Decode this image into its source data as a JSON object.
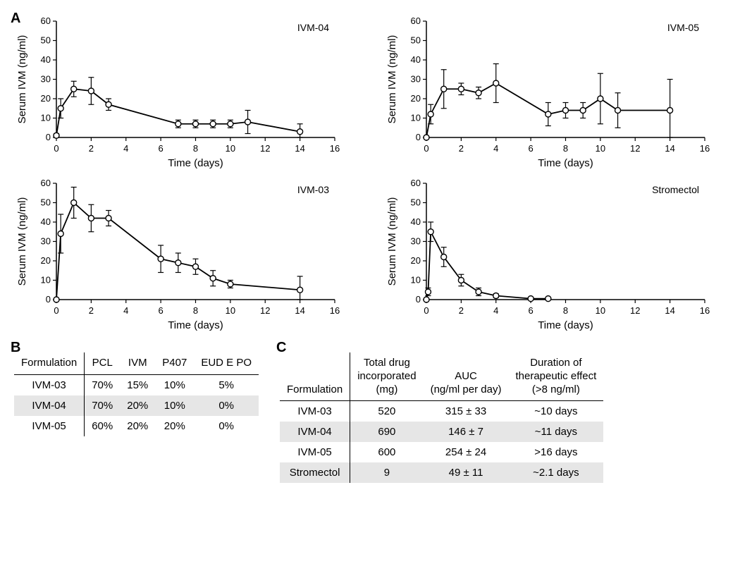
{
  "panelA": {
    "label": "A",
    "ylabel": "Serum IVM (ng/ml)",
    "xlabel": "Time (days)",
    "ylim": [
      0,
      60
    ],
    "ytick_step": 10,
    "xlim": [
      0,
      16
    ],
    "xtick_step": 2,
    "marker": {
      "shape": "circle",
      "size": 4,
      "fill": "#ffffff",
      "stroke": "#000000"
    },
    "line_color": "#000000",
    "line_width": 1.8,
    "error_cap": 4,
    "background_color": "#ffffff",
    "axis_color": "#000000",
    "font_size_axis": 13,
    "font_size_label_chart": 15,
    "charts": [
      {
        "title": "IVM-04",
        "points": [
          {
            "x": 0,
            "y": 1,
            "err": 1
          },
          {
            "x": 0.25,
            "y": 15,
            "err": 5
          },
          {
            "x": 1,
            "y": 25,
            "err": 4
          },
          {
            "x": 2,
            "y": 24,
            "err": 7
          },
          {
            "x": 3,
            "y": 17,
            "err": 3
          },
          {
            "x": 7,
            "y": 7,
            "err": 2
          },
          {
            "x": 8,
            "y": 7,
            "err": 2
          },
          {
            "x": 9,
            "y": 7,
            "err": 2
          },
          {
            "x": 10,
            "y": 7,
            "err": 2
          },
          {
            "x": 11,
            "y": 8,
            "err": 6
          },
          {
            "x": 14,
            "y": 3,
            "err": 4
          }
        ]
      },
      {
        "title": "IVM-05",
        "points": [
          {
            "x": 0,
            "y": 0,
            "err": 0
          },
          {
            "x": 0.25,
            "y": 12,
            "err": 5
          },
          {
            "x": 1,
            "y": 25,
            "err": 10
          },
          {
            "x": 2,
            "y": 25,
            "err": 3
          },
          {
            "x": 3,
            "y": 23,
            "err": 3
          },
          {
            "x": 4,
            "y": 28,
            "err": 10
          },
          {
            "x": 7,
            "y": 12,
            "err": 6
          },
          {
            "x": 8,
            "y": 14,
            "err": 4
          },
          {
            "x": 9,
            "y": 14,
            "err": 4
          },
          {
            "x": 10,
            "y": 20,
            "err": 13
          },
          {
            "x": 11,
            "y": 14,
            "err": 9
          },
          {
            "x": 14,
            "y": 14,
            "err": 16
          }
        ]
      },
      {
        "title": "IVM-03",
        "points": [
          {
            "x": 0,
            "y": 0,
            "err": 0
          },
          {
            "x": 0.25,
            "y": 34,
            "err": 10
          },
          {
            "x": 1,
            "y": 50,
            "err": 8
          },
          {
            "x": 2,
            "y": 42,
            "err": 7
          },
          {
            "x": 3,
            "y": 42,
            "err": 4
          },
          {
            "x": 6,
            "y": 21,
            "err": 7
          },
          {
            "x": 7,
            "y": 19,
            "err": 5
          },
          {
            "x": 8,
            "y": 17,
            "err": 4
          },
          {
            "x": 9,
            "y": 11,
            "err": 4
          },
          {
            "x": 10,
            "y": 8,
            "err": 2
          },
          {
            "x": 14,
            "y": 5,
            "err": 7
          }
        ]
      },
      {
        "title": "Stromectol",
        "points": [
          {
            "x": 0,
            "y": 0,
            "err": 0
          },
          {
            "x": 0.1,
            "y": 4,
            "err": 2
          },
          {
            "x": 0.25,
            "y": 35,
            "err": 5
          },
          {
            "x": 1,
            "y": 22,
            "err": 5
          },
          {
            "x": 2,
            "y": 10,
            "err": 3
          },
          {
            "x": 3,
            "y": 4,
            "err": 2
          },
          {
            "x": 4,
            "y": 2,
            "err": 1
          },
          {
            "x": 6,
            "y": 0.5,
            "err": 0.5
          },
          {
            "x": 7,
            "y": 0.5,
            "err": 0.5
          }
        ]
      }
    ]
  },
  "panelB": {
    "label": "B",
    "columns": [
      "Formulation",
      "PCL",
      "IVM",
      "P407",
      "EUD E PO"
    ],
    "rows": [
      {
        "shaded": false,
        "cells": [
          "IVM-03",
          "70%",
          "15%",
          "10%",
          "5%"
        ]
      },
      {
        "shaded": true,
        "cells": [
          "IVM-04",
          "70%",
          "20%",
          "10%",
          "0%"
        ]
      },
      {
        "shaded": false,
        "cells": [
          "IVM-05",
          "60%",
          "20%",
          "20%",
          "0%"
        ]
      }
    ]
  },
  "panelC": {
    "label": "C",
    "columns": [
      "Formulation",
      "Total drug\nincorporated\n(mg)",
      "AUC\n(ng/ml per day)",
      "Duration of\ntherapeutic effect\n(>8 ng/ml)"
    ],
    "rows": [
      {
        "shaded": false,
        "cells": [
          "IVM-03",
          "520",
          "315 ± 33",
          "~10 days"
        ]
      },
      {
        "shaded": true,
        "cells": [
          "IVM-04",
          "690",
          "146 ± 7",
          "~11 days"
        ]
      },
      {
        "shaded": false,
        "cells": [
          "IVM-05",
          "600",
          "254 ± 24",
          ">16 days"
        ]
      },
      {
        "shaded": true,
        "cells": [
          "Stromectol",
          "9",
          "49 ± 11",
          "~2.1 days"
        ]
      }
    ]
  }
}
